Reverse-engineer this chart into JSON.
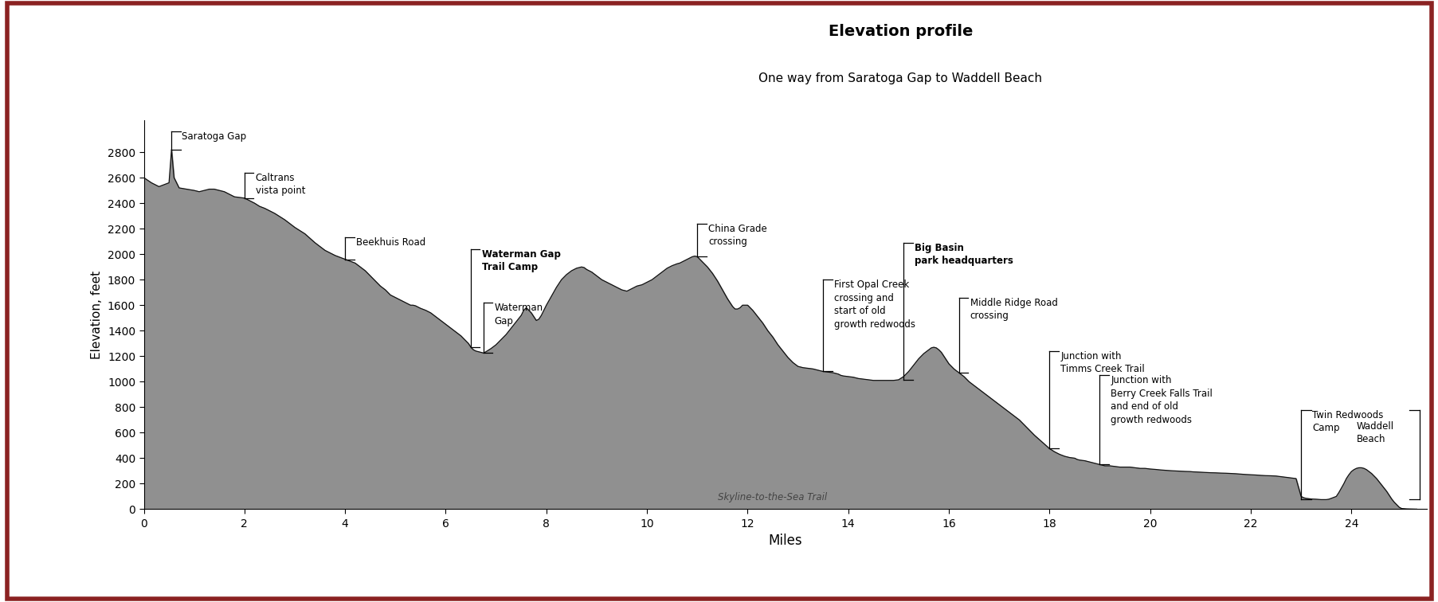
{
  "title": "Elevation profile",
  "subtitle": "One way from Saratoga Gap to Waddell Beach",
  "xlabel": "Miles",
  "ylabel": "Elevation, feet",
  "trail_label": "Skyline-to-the-Sea Trail",
  "fill_color": "#909090",
  "line_color": "#111111",
  "background_color": "#ffffff",
  "border_color": "#8B2222",
  "xlim": [
    0,
    25.5
  ],
  "ylim": [
    0,
    3050
  ],
  "yticks": [
    0,
    200,
    400,
    600,
    800,
    1000,
    1200,
    1400,
    1600,
    1800,
    2000,
    2200,
    2400,
    2600,
    2800
  ],
  "xticks": [
    0,
    2,
    4,
    6,
    8,
    10,
    12,
    14,
    16,
    18,
    20,
    22,
    24
  ],
  "profile": [
    [
      0.0,
      2600
    ],
    [
      0.15,
      2560
    ],
    [
      0.3,
      2530
    ],
    [
      0.5,
      2560
    ],
    [
      0.55,
      2820
    ],
    [
      0.6,
      2600
    ],
    [
      0.7,
      2520
    ],
    [
      0.85,
      2510
    ],
    [
      1.0,
      2500
    ],
    [
      1.1,
      2490
    ],
    [
      1.2,
      2500
    ],
    [
      1.3,
      2510
    ],
    [
      1.4,
      2510
    ],
    [
      1.5,
      2500
    ],
    [
      1.6,
      2490
    ],
    [
      1.7,
      2470
    ],
    [
      1.8,
      2450
    ],
    [
      1.9,
      2445
    ],
    [
      2.0,
      2440
    ],
    [
      2.1,
      2420
    ],
    [
      2.2,
      2400
    ],
    [
      2.3,
      2375
    ],
    [
      2.4,
      2360
    ],
    [
      2.6,
      2320
    ],
    [
      2.8,
      2270
    ],
    [
      3.0,
      2210
    ],
    [
      3.2,
      2160
    ],
    [
      3.4,
      2090
    ],
    [
      3.6,
      2030
    ],
    [
      3.8,
      1990
    ],
    [
      4.0,
      1960
    ],
    [
      4.2,
      1930
    ],
    [
      4.4,
      1870
    ],
    [
      4.5,
      1830
    ],
    [
      4.6,
      1790
    ],
    [
      4.7,
      1750
    ],
    [
      4.8,
      1720
    ],
    [
      4.85,
      1700
    ],
    [
      4.9,
      1680
    ],
    [
      5.0,
      1660
    ],
    [
      5.1,
      1640
    ],
    [
      5.2,
      1620
    ],
    [
      5.3,
      1600
    ],
    [
      5.35,
      1600
    ],
    [
      5.4,
      1595
    ],
    [
      5.5,
      1575
    ],
    [
      5.6,
      1560
    ],
    [
      5.7,
      1540
    ],
    [
      5.8,
      1510
    ],
    [
      5.9,
      1480
    ],
    [
      6.0,
      1450
    ],
    [
      6.1,
      1420
    ],
    [
      6.2,
      1390
    ],
    [
      6.3,
      1360
    ],
    [
      6.35,
      1340
    ],
    [
      6.4,
      1320
    ],
    [
      6.45,
      1300
    ],
    [
      6.5,
      1270
    ],
    [
      6.55,
      1250
    ],
    [
      6.6,
      1240
    ],
    [
      6.65,
      1235
    ],
    [
      6.7,
      1230
    ],
    [
      6.75,
      1225
    ],
    [
      6.8,
      1235
    ],
    [
      6.9,
      1260
    ],
    [
      7.0,
      1290
    ],
    [
      7.1,
      1330
    ],
    [
      7.2,
      1370
    ],
    [
      7.3,
      1420
    ],
    [
      7.4,
      1470
    ],
    [
      7.5,
      1520
    ],
    [
      7.55,
      1560
    ],
    [
      7.6,
      1580
    ],
    [
      7.65,
      1560
    ],
    [
      7.7,
      1540
    ],
    [
      7.75,
      1510
    ],
    [
      7.8,
      1480
    ],
    [
      7.85,
      1490
    ],
    [
      7.9,
      1520
    ],
    [
      8.0,
      1600
    ],
    [
      8.1,
      1670
    ],
    [
      8.2,
      1740
    ],
    [
      8.3,
      1800
    ],
    [
      8.4,
      1840
    ],
    [
      8.5,
      1870
    ],
    [
      8.6,
      1890
    ],
    [
      8.7,
      1900
    ],
    [
      8.75,
      1895
    ],
    [
      8.8,
      1880
    ],
    [
      8.9,
      1860
    ],
    [
      9.0,
      1830
    ],
    [
      9.1,
      1800
    ],
    [
      9.2,
      1780
    ],
    [
      9.3,
      1760
    ],
    [
      9.4,
      1740
    ],
    [
      9.5,
      1720
    ],
    [
      9.6,
      1710
    ],
    [
      9.65,
      1720
    ],
    [
      9.7,
      1730
    ],
    [
      9.8,
      1750
    ],
    [
      9.9,
      1760
    ],
    [
      10.0,
      1780
    ],
    [
      10.1,
      1800
    ],
    [
      10.2,
      1830
    ],
    [
      10.3,
      1860
    ],
    [
      10.4,
      1890
    ],
    [
      10.5,
      1910
    ],
    [
      10.6,
      1925
    ],
    [
      10.65,
      1930
    ],
    [
      10.7,
      1940
    ],
    [
      10.75,
      1950
    ],
    [
      10.8,
      1960
    ],
    [
      10.85,
      1970
    ],
    [
      10.9,
      1980
    ],
    [
      10.95,
      1985
    ],
    [
      11.0,
      1980
    ],
    [
      11.05,
      1960
    ],
    [
      11.1,
      1940
    ],
    [
      11.2,
      1900
    ],
    [
      11.3,
      1850
    ],
    [
      11.4,
      1790
    ],
    [
      11.5,
      1720
    ],
    [
      11.6,
      1650
    ],
    [
      11.65,
      1620
    ],
    [
      11.7,
      1590
    ],
    [
      11.75,
      1570
    ],
    [
      11.8,
      1570
    ],
    [
      11.85,
      1580
    ],
    [
      11.9,
      1600
    ],
    [
      12.0,
      1600
    ],
    [
      12.1,
      1560
    ],
    [
      12.2,
      1510
    ],
    [
      12.3,
      1460
    ],
    [
      12.4,
      1400
    ],
    [
      12.5,
      1350
    ],
    [
      12.6,
      1290
    ],
    [
      12.7,
      1240
    ],
    [
      12.8,
      1190
    ],
    [
      12.9,
      1150
    ],
    [
      13.0,
      1120
    ],
    [
      13.1,
      1110
    ],
    [
      13.2,
      1105
    ],
    [
      13.3,
      1100
    ],
    [
      13.4,
      1090
    ],
    [
      13.5,
      1080
    ],
    [
      13.6,
      1075
    ],
    [
      13.7,
      1070
    ],
    [
      13.8,
      1060
    ],
    [
      13.85,
      1050
    ],
    [
      13.9,
      1045
    ],
    [
      14.0,
      1040
    ],
    [
      14.1,
      1035
    ],
    [
      14.15,
      1030
    ],
    [
      14.2,
      1025
    ],
    [
      14.3,
      1020
    ],
    [
      14.4,
      1015
    ],
    [
      14.5,
      1010
    ],
    [
      14.6,
      1010
    ],
    [
      14.7,
      1010
    ],
    [
      14.8,
      1010
    ],
    [
      14.9,
      1010
    ],
    [
      15.0,
      1015
    ],
    [
      15.1,
      1040
    ],
    [
      15.2,
      1080
    ],
    [
      15.3,
      1130
    ],
    [
      15.4,
      1180
    ],
    [
      15.5,
      1220
    ],
    [
      15.6,
      1250
    ],
    [
      15.65,
      1265
    ],
    [
      15.7,
      1270
    ],
    [
      15.75,
      1265
    ],
    [
      15.8,
      1250
    ],
    [
      15.85,
      1230
    ],
    [
      15.9,
      1200
    ],
    [
      15.95,
      1170
    ],
    [
      16.0,
      1140
    ],
    [
      16.1,
      1100
    ],
    [
      16.2,
      1070
    ],
    [
      16.3,
      1040
    ],
    [
      16.35,
      1020
    ],
    [
      16.4,
      1000
    ],
    [
      16.5,
      970
    ],
    [
      16.6,
      940
    ],
    [
      16.7,
      910
    ],
    [
      16.8,
      880
    ],
    [
      16.9,
      850
    ],
    [
      17.0,
      820
    ],
    [
      17.1,
      790
    ],
    [
      17.2,
      760
    ],
    [
      17.3,
      730
    ],
    [
      17.4,
      700
    ],
    [
      17.5,
      660
    ],
    [
      17.6,
      620
    ],
    [
      17.7,
      580
    ],
    [
      17.8,
      545
    ],
    [
      17.9,
      510
    ],
    [
      18.0,
      475
    ],
    [
      18.1,
      450
    ],
    [
      18.2,
      430
    ],
    [
      18.3,
      415
    ],
    [
      18.35,
      410
    ],
    [
      18.4,
      405
    ],
    [
      18.5,
      400
    ],
    [
      18.55,
      390
    ],
    [
      18.6,
      385
    ],
    [
      18.7,
      380
    ],
    [
      18.75,
      375
    ],
    [
      18.8,
      370
    ],
    [
      18.85,
      365
    ],
    [
      18.9,
      360
    ],
    [
      18.95,
      355
    ],
    [
      19.0,
      350
    ],
    [
      19.1,
      340
    ],
    [
      19.15,
      340
    ],
    [
      19.2,
      340
    ],
    [
      19.3,
      335
    ],
    [
      19.4,
      330
    ],
    [
      19.5,
      330
    ],
    [
      19.6,
      330
    ],
    [
      19.7,
      325
    ],
    [
      19.8,
      320
    ],
    [
      19.9,
      320
    ],
    [
      20.0,
      315
    ],
    [
      20.1,
      312
    ],
    [
      20.2,
      308
    ],
    [
      20.3,
      305
    ],
    [
      20.4,
      302
    ],
    [
      20.5,
      300
    ],
    [
      20.6,
      298
    ],
    [
      20.7,
      296
    ],
    [
      20.8,
      295
    ],
    [
      20.85,
      293
    ],
    [
      20.9,
      292
    ],
    [
      21.0,
      290
    ],
    [
      21.1,
      288
    ],
    [
      21.2,
      286
    ],
    [
      21.3,
      285
    ],
    [
      21.4,
      283
    ],
    [
      21.5,
      282
    ],
    [
      21.6,
      280
    ],
    [
      21.7,
      278
    ],
    [
      21.8,
      275
    ],
    [
      21.9,
      272
    ],
    [
      22.0,
      270
    ],
    [
      22.1,
      268
    ],
    [
      22.2,
      265
    ],
    [
      22.3,
      263
    ],
    [
      22.4,
      262
    ],
    [
      22.5,
      260
    ],
    [
      22.6,
      255
    ],
    [
      22.7,
      250
    ],
    [
      22.8,
      245
    ],
    [
      22.9,
      240
    ],
    [
      23.0,
      100
    ],
    [
      23.05,
      90
    ],
    [
      23.1,
      85
    ],
    [
      23.2,
      80
    ],
    [
      23.3,
      78
    ],
    [
      23.4,
      75
    ],
    [
      23.5,
      75
    ],
    [
      23.55,
      78
    ],
    [
      23.6,
      85
    ],
    [
      23.7,
      100
    ],
    [
      23.75,
      130
    ],
    [
      23.8,
      165
    ],
    [
      23.85,
      200
    ],
    [
      23.9,
      240
    ],
    [
      23.95,
      270
    ],
    [
      24.0,
      295
    ],
    [
      24.05,
      310
    ],
    [
      24.1,
      320
    ],
    [
      24.15,
      325
    ],
    [
      24.2,
      325
    ],
    [
      24.25,
      320
    ],
    [
      24.3,
      310
    ],
    [
      24.35,
      295
    ],
    [
      24.4,
      280
    ],
    [
      24.45,
      260
    ],
    [
      24.5,
      240
    ],
    [
      24.55,
      215
    ],
    [
      24.6,
      190
    ],
    [
      24.65,
      165
    ],
    [
      24.7,
      140
    ],
    [
      24.75,
      110
    ],
    [
      24.8,
      80
    ],
    [
      24.85,
      55
    ],
    [
      24.9,
      35
    ],
    [
      24.95,
      15
    ],
    [
      25.0,
      5
    ],
    [
      25.1,
      2
    ],
    [
      25.2,
      1
    ],
    [
      25.3,
      0
    ]
  ]
}
